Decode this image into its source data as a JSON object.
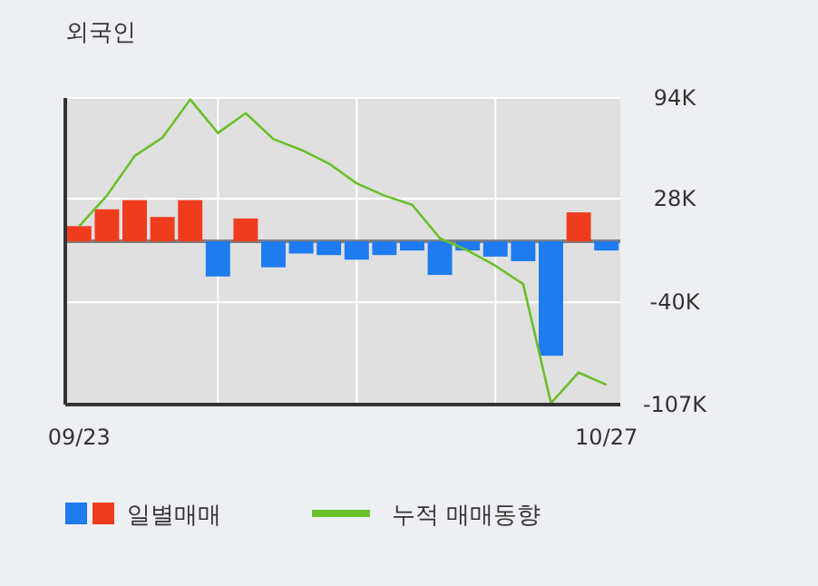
{
  "chart_data": {
    "type": "bar",
    "title": "외국인",
    "categories": [
      "09/23",
      null,
      null,
      null,
      null,
      null,
      null,
      null,
      null,
      null,
      null,
      null,
      null,
      null,
      null,
      null,
      null,
      null,
      null,
      "10/27"
    ],
    "series": [
      {
        "name": "일별매매",
        "colors": [
          "#f03c1e",
          "#f03c1e",
          "#f03c1e",
          "#f03c1e",
          "#f03c1e",
          "#1e7cf0",
          "#f03c1e",
          "#1e7cf0",
          "#1e7cf0",
          "#1e7cf0",
          "#1e7cf0",
          "#1e7cf0",
          "#1e7cf0",
          "#1e7cf0",
          "#1e7cf0",
          "#1e7cf0",
          "#1e7cf0",
          "#1e7cf0",
          "#f03c1e",
          "#1e7cf0"
        ],
        "values": [
          10000,
          21000,
          27000,
          16000,
          27000,
          -23000,
          15000,
          -17000,
          -8000,
          -9000,
          -12000,
          -9000,
          -6000,
          -22000,
          -6000,
          -10000,
          -13000,
          -75000,
          19000,
          -6000
        ]
      },
      {
        "name": "누적 매매동향",
        "type": "line",
        "color": "#6abf2a",
        "values": [
          10000,
          30000,
          56000,
          68000,
          93000,
          71000,
          84000,
          67000,
          60000,
          51000,
          38000,
          30000,
          24000,
          2000,
          -6000,
          -16000,
          -28000,
          -106000,
          -86000,
          -94000
        ]
      }
    ],
    "ylim": [
      -107000,
      94000
    ],
    "yticks": [
      {
        "value": 94000,
        "label": "94K"
      },
      {
        "value": 28000,
        "label": "28K"
      },
      {
        "value": -40000,
        "label": "-40K"
      },
      {
        "value": -107000,
        "label": "-107K"
      }
    ],
    "ref_lines": [
      {
        "axis": "y",
        "value": 0,
        "color": "#808080"
      }
    ],
    "grid": true,
    "legend": "bottom",
    "marker": "none"
  }
}
